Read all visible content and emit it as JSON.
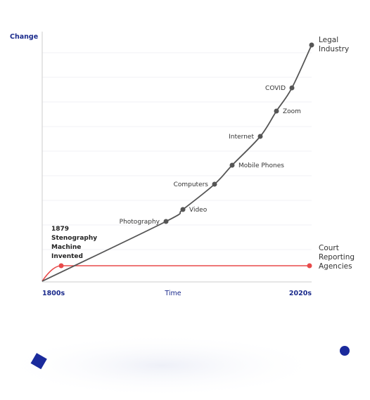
{
  "axis": {
    "y_label": "Change",
    "x_label": "Time",
    "x_start": "1800s",
    "x_end": "2020s"
  },
  "milestones": [
    "Photography",
    "Video",
    "Computers",
    "Mobile Phones",
    "Internet",
    "Zoom",
    "COVID"
  ],
  "lines": {
    "legal": [
      "Legal",
      "Industry"
    ],
    "court": [
      "Court",
      "Reporting",
      "Agencies"
    ]
  },
  "annotation": [
    "1879",
    "Stenography",
    "Machine",
    "Invented"
  ]
}
